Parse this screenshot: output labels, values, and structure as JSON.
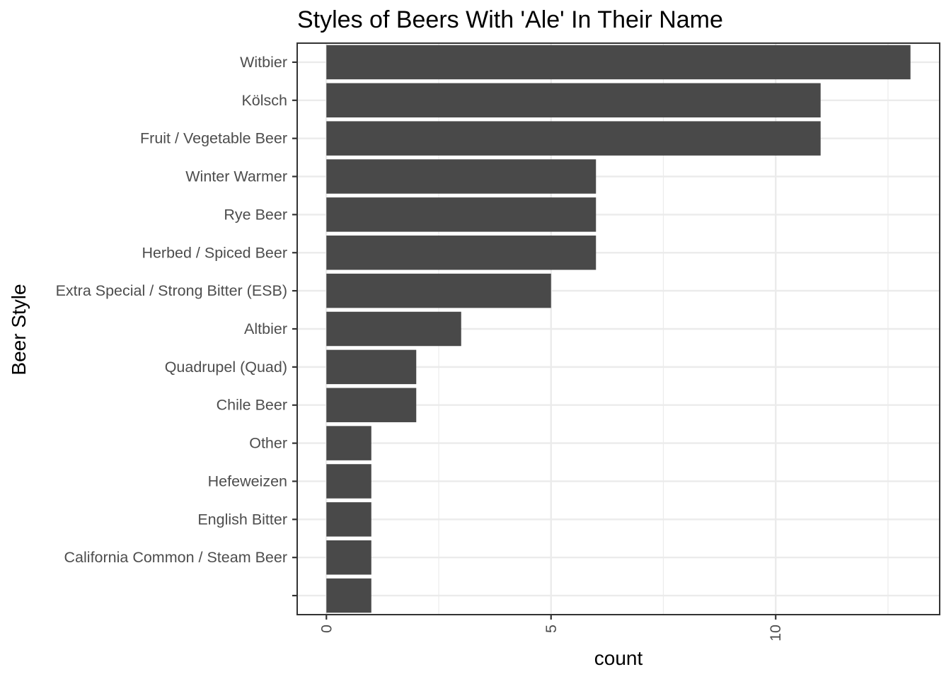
{
  "chart_data": {
    "type": "bar",
    "orientation": "horizontal",
    "title": "Styles of Beers With 'Ale' In Their Name",
    "xlabel": "count",
    "ylabel": "Beer Style",
    "categories": [
      "Witbier",
      "Kölsch",
      "Fruit / Vegetable Beer",
      "Winter Warmer",
      "Rye Beer",
      "Herbed / Spiced Beer",
      "Extra Special / Strong Bitter (ESB)",
      "Altbier",
      "Quadrupel (Quad)",
      "Chile Beer",
      "Other",
      "Hefeweizen",
      "English Bitter",
      "California Common / Steam Beer",
      ""
    ],
    "values": [
      13,
      11,
      11,
      6,
      6,
      6,
      5,
      3,
      2,
      2,
      1,
      1,
      1,
      1,
      1
    ],
    "xlim": [
      -0.65,
      13.65
    ],
    "x_ticks": [
      0,
      5,
      10
    ],
    "x_tick_labels": [
      "0",
      "5",
      "10"
    ],
    "x_tick_label_rotation": 90,
    "bar_color": "#494949",
    "grid": true,
    "theme": "bw"
  }
}
